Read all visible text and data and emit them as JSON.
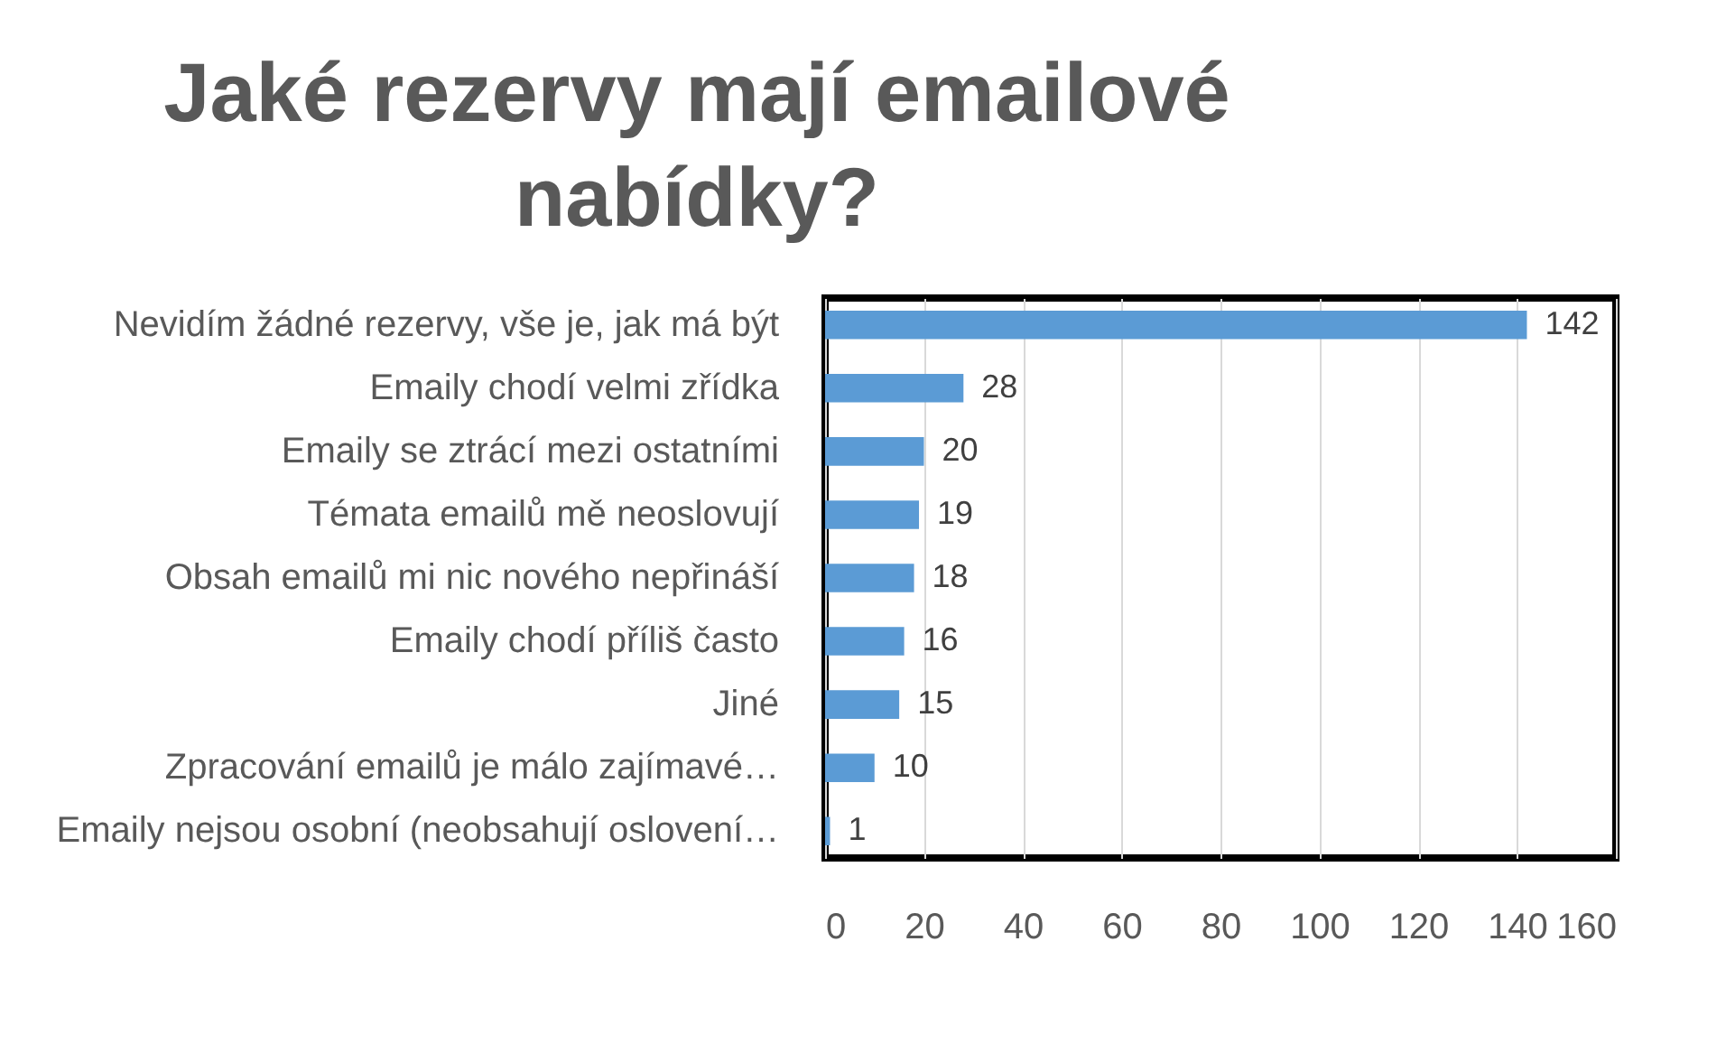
{
  "chart_data": {
    "type": "bar",
    "title": "Jaké rezervy mají emailové nabídky?",
    "orientation": "horizontal",
    "categories": [
      "Nevidím žádné rezervy, vše je, jak má být",
      "Emaily chodí velmi zřídka",
      "Emaily se ztrácí mezi ostatními",
      "Témata emailů mě neoslovují",
      "Obsah emailů mi nic nového nepřináší",
      "Emaily chodí příliš často",
      "Jiné",
      "Zpracování emailů je málo zajímavé…",
      "Emaily nejsou osobní (neobsahují oslovení…"
    ],
    "values": [
      142,
      28,
      20,
      19,
      18,
      16,
      15,
      10,
      1
    ],
    "color": "#5b9bd5",
    "xlim": [
      0,
      160
    ],
    "xticks": [
      0,
      20,
      40,
      60,
      80,
      100,
      120,
      140,
      160
    ],
    "grid": "x",
    "data_labels": true
  }
}
